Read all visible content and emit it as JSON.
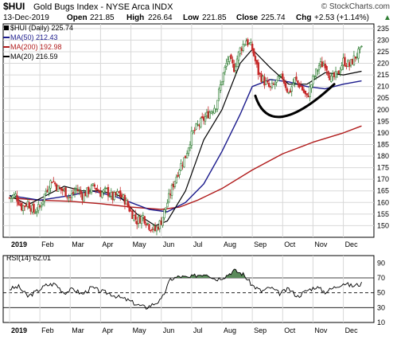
{
  "header": {
    "symbol": "$HUI",
    "description": "Gold Bugs Index - NYSE Arca INDX",
    "copyright": "© StockCharts.com",
    "date": "13-Dec-2019",
    "open_label": "Open",
    "open": "221.85",
    "high_label": "High",
    "high": "226.64",
    "low_label": "Low",
    "low": "221.85",
    "close_label": "Close",
    "close": "225.74",
    "chg_label": "Chg",
    "chg": "+2.53 (+1.14%)",
    "chg_arrow": "▲"
  },
  "legend": {
    "price": "$HUI (Daily) 225.74",
    "ma50": "MA(50) 212.43",
    "ma200": "MA(200) 192.98",
    "ma20": "MA(20) 216.59"
  },
  "rsi_panel": {
    "label": "RSI(14) 62.01"
  },
  "colors": {
    "price": "#000000",
    "ma50": "#1a1a8c",
    "ma200": "#b01a1a",
    "ma20": "#000000",
    "up_candle": "#2e7d32",
    "down_candle": "#c62828",
    "rsi_fill": "#5a8a5a",
    "grid": "#d8d8d8",
    "frame": "#000000"
  },
  "chart_data": [
    {
      "type": "candlestick",
      "title": "$HUI (Daily) 225.74",
      "x_axis": {
        "ticks": [
          "2019",
          "Feb",
          "Mar",
          "Apr",
          "May",
          "Jun",
          "Jul",
          "Aug",
          "Sep",
          "Oct",
          "Nov",
          "Dec"
        ]
      },
      "y_axis": {
        "side": "right",
        "range": [
          145,
          237
        ],
        "ticks": [
          150,
          155,
          160,
          165,
          170,
          175,
          180,
          185,
          190,
          195,
          200,
          205,
          210,
          215,
          220,
          225,
          230,
          235
        ]
      },
      "grid": true,
      "legend_position": "top-left",
      "series": [
        {
          "name": "$HUI (Daily) 225.74",
          "kind": "price",
          "months": [
            "2019",
            "Feb",
            "Mar",
            "Apr",
            "May",
            "Jun",
            "Jul",
            "Aug",
            "Sep",
            "Oct",
            "Nov",
            "Dec"
          ],
          "points": [
            [
              0,
              162
            ],
            [
              0.2,
              163
            ],
            [
              0.4,
              158
            ],
            [
              0.6,
              160
            ],
            [
              0.8,
              156
            ],
            [
              1.0,
              158
            ],
            [
              1.2,
              165
            ],
            [
              1.4,
              170
            ],
            [
              1.6,
              166
            ],
            [
              1.8,
              165
            ],
            [
              2.0,
              162
            ],
            [
              2.2,
              166
            ],
            [
              2.4,
              163
            ],
            [
              2.6,
              165
            ],
            [
              2.8,
              167
            ],
            [
              3.0,
              164
            ],
            [
              3.2,
              165
            ],
            [
              3.4,
              162
            ],
            [
              3.6,
              164
            ],
            [
              3.8,
              161
            ],
            [
              4.0,
              156
            ],
            [
              4.2,
              152
            ],
            [
              4.4,
              154
            ],
            [
              4.6,
              150
            ],
            [
              4.8,
              148
            ],
            [
              5.0,
              152
            ],
            [
              5.2,
              160
            ],
            [
              5.4,
              168
            ],
            [
              5.6,
              175
            ],
            [
              5.8,
              180
            ],
            [
              6.0,
              189
            ],
            [
              6.2,
              193
            ],
            [
              6.4,
              196
            ],
            [
              6.6,
              199
            ],
            [
              6.8,
              202
            ],
            [
              7.0,
              213
            ],
            [
              7.2,
              222
            ],
            [
              7.4,
              218
            ],
            [
              7.6,
              226
            ],
            [
              7.8,
              230
            ],
            [
              8.0,
              226
            ],
            [
              8.2,
              216
            ],
            [
              8.4,
              212
            ],
            [
              8.6,
              209
            ],
            [
              8.8,
              212
            ],
            [
              9.0,
              214
            ],
            [
              9.2,
              207
            ],
            [
              9.4,
              213
            ],
            [
              9.6,
              210
            ],
            [
              9.8,
              205
            ],
            [
              10.0,
              213
            ],
            [
              10.2,
              219
            ],
            [
              10.4,
              220
            ],
            [
              10.6,
              213
            ],
            [
              10.8,
              215
            ],
            [
              11.0,
              221
            ],
            [
              11.2,
              219
            ],
            [
              11.4,
              223
            ],
            [
              11.6,
              225.74
            ]
          ]
        },
        {
          "name": "MA(50) 212.43",
          "kind": "ma",
          "points": [
            [
              0,
              163
            ],
            [
              1.0,
              161
            ],
            [
              2.0,
              163
            ],
            [
              2.7,
              165
            ],
            [
              3.4,
              163
            ],
            [
              4.0,
              160
            ],
            [
              4.6,
              157
            ],
            [
              5.2,
              156
            ],
            [
              5.8,
              160
            ],
            [
              6.4,
              168
            ],
            [
              7.0,
              182
            ],
            [
              7.6,
              198
            ],
            [
              8.0,
              210
            ],
            [
              8.6,
              213
            ],
            [
              9.2,
              212
            ],
            [
              9.8,
              210
            ],
            [
              10.4,
              209
            ],
            [
              11.0,
              211
            ],
            [
              11.6,
              212.43
            ]
          ]
        },
        {
          "name": "MA(200) 192.98",
          "kind": "ma",
          "points": [
            [
              0,
              162
            ],
            [
              1.0,
              161
            ],
            [
              2.0,
              160.5
            ],
            [
              3.0,
              159.5
            ],
            [
              4.0,
              158
            ],
            [
              5.0,
              157
            ],
            [
              5.6,
              158
            ],
            [
              6.2,
              161
            ],
            [
              7.0,
              166
            ],
            [
              8.0,
              174
            ],
            [
              9.0,
              181
            ],
            [
              10.0,
              186
            ],
            [
              11.0,
              190
            ],
            [
              11.6,
              192.98
            ]
          ]
        },
        {
          "name": "MA(20) 216.59",
          "kind": "ma",
          "points": [
            [
              0,
              163
            ],
            [
              0.6,
              159
            ],
            [
              1.2,
              163
            ],
            [
              1.8,
              167
            ],
            [
              2.4,
              165
            ],
            [
              3.0,
              165
            ],
            [
              3.6,
              163
            ],
            [
              4.2,
              155
            ],
            [
              4.8,
              150
            ],
            [
              5.2,
              152
            ],
            [
              5.8,
              165
            ],
            [
              6.4,
              187
            ],
            [
              7.0,
              200
            ],
            [
              7.6,
              220
            ],
            [
              8.0,
              226
            ],
            [
              8.6,
              218
            ],
            [
              9.2,
              211
            ],
            [
              9.8,
              211
            ],
            [
              10.4,
              216
            ],
            [
              11.0,
              215
            ],
            [
              11.6,
              216.59
            ]
          ]
        }
      ],
      "annotations": [
        {
          "kind": "arc",
          "from": [
            8.1,
            206
          ],
          "through": [
            9.0,
            197
          ],
          "to": [
            10.7,
            211
          ]
        }
      ]
    },
    {
      "type": "line",
      "title": "RSI(14) 62.01",
      "x_axis": {
        "ticks": [
          "2019",
          "Feb",
          "Mar",
          "Apr",
          "May",
          "Jun",
          "Jul",
          "Aug",
          "Sep",
          "Oct",
          "Nov",
          "Dec"
        ]
      },
      "y_axis": {
        "side": "right",
        "range": [
          10,
          100
        ],
        "ticks": [
          10,
          30,
          50,
          70,
          90
        ],
        "reference_lines": [
          30,
          50,
          70
        ]
      },
      "grid": true,
      "series": [
        {
          "name": "RSI(14) 62.01",
          "points": [
            [
              0,
              55
            ],
            [
              0.3,
              58
            ],
            [
              0.6,
              45
            ],
            [
              0.9,
              52
            ],
            [
              1.2,
              60
            ],
            [
              1.5,
              62
            ],
            [
              1.8,
              50
            ],
            [
              2.1,
              55
            ],
            [
              2.4,
              48
            ],
            [
              2.7,
              57
            ],
            [
              3.0,
              52
            ],
            [
              3.3,
              49
            ],
            [
              3.6,
              44
            ],
            [
              3.9,
              40
            ],
            [
              4.2,
              34
            ],
            [
              4.5,
              30
            ],
            [
              4.8,
              36
            ],
            [
              5.0,
              40
            ],
            [
              5.3,
              68
            ],
            [
              5.6,
              72
            ],
            [
              5.9,
              70
            ],
            [
              6.2,
              74
            ],
            [
              6.5,
              76
            ],
            [
              6.8,
              68
            ],
            [
              7.1,
              72
            ],
            [
              7.4,
              80
            ],
            [
              7.7,
              75
            ],
            [
              8.0,
              60
            ],
            [
              8.3,
              52
            ],
            [
              8.6,
              57
            ],
            [
              8.9,
              49
            ],
            [
              9.2,
              55
            ],
            [
              9.5,
              45
            ],
            [
              9.8,
              53
            ],
            [
              10.1,
              58
            ],
            [
              10.4,
              51
            ],
            [
              10.7,
              57
            ],
            [
              11.0,
              63
            ],
            [
              11.3,
              59
            ],
            [
              11.6,
              62.01
            ]
          ]
        }
      ]
    }
  ]
}
